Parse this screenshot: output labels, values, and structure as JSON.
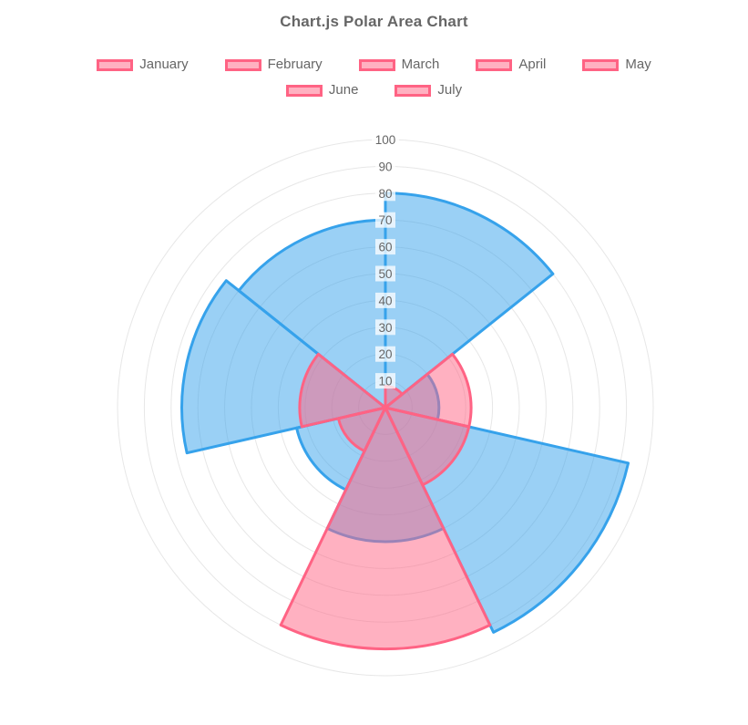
{
  "title": "Chart.js Polar Area Chart",
  "legend": {
    "rows": [
      [
        "January",
        "February",
        "March",
        "April",
        "May"
      ],
      [
        "June",
        "July"
      ]
    ],
    "swatch_fill": "#FFB1C1",
    "swatch_border": "#FF6384"
  },
  "chart_data": {
    "type": "polarArea",
    "title": "Chart.js Polar Area Chart",
    "categories": [
      "January",
      "February",
      "March",
      "April",
      "May",
      "June",
      "July"
    ],
    "series": [
      {
        "name": "blue",
        "border_color": "#36A2EB",
        "fill_color": "rgba(54,162,235,0.5)",
        "values": [
          80,
          20,
          93,
          50,
          34,
          76,
          70
        ]
      },
      {
        "name": "pink",
        "border_color": "#FF6384",
        "fill_color": "rgba(255,99,132,0.5)",
        "values": [
          8,
          32,
          32,
          90,
          18,
          32,
          0
        ]
      }
    ],
    "rlim": [
      0,
      100
    ],
    "ticks": [
      10,
      20,
      30,
      40,
      50,
      60,
      70,
      80,
      90,
      100
    ],
    "tick_color": "#666666",
    "tick_backdrop": "rgba(255,255,255,0.75)",
    "grid_color": "#e7e7e7",
    "grid": "on",
    "start_angle": "top",
    "direction": "clockwise",
    "legend_position": "top"
  }
}
